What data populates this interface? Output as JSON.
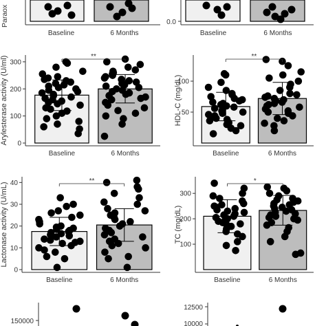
{
  "style": {
    "bar_fill_baseline": "#f0f0f0",
    "bar_fill_6m": "#bdbdbd",
    "point_color": "#000000",
    "axis_color": "#333333"
  },
  "chart_data": [
    {
      "id": "paraoxonase",
      "type": "bar",
      "ylabel": "Paraox",
      "categories": [
        "Baseline",
        "6 Months"
      ],
      "means": [
        null,
        null
      ],
      "ylim": [
        null,
        null
      ],
      "ticks": [],
      "tick_labels": [],
      "significance": "",
      "points": [
        [],
        []
      ]
    },
    {
      "id": "top-right",
      "type": "bar",
      "ylabel": "",
      "categories": [
        "Baseline",
        "6 Months"
      ],
      "means": [
        null,
        null
      ],
      "ylim": [
        0,
        null
      ],
      "ticks": [
        0
      ],
      "tick_labels": [
        "0.0"
      ],
      "significance": "",
      "points": [
        [],
        []
      ]
    },
    {
      "id": "arylesterase",
      "type": "bar",
      "ylabel": "Arylesterase activity (U/ml)",
      "categories": [
        "Baseline",
        "6 Months"
      ],
      "means": [
        177,
        200
      ],
      "errors": [
        [
          120,
          233
        ],
        [
          148,
          253
        ]
      ],
      "ylim": [
        0,
        320
      ],
      "ticks": [
        0,
        100,
        200,
        300
      ],
      "tick_labels": [
        "0",
        "100",
        "200",
        "300"
      ],
      "significance": "**",
      "points": [
        [
          35,
          52,
          60,
          70,
          80,
          90,
          100,
          110,
          118,
          125,
          130,
          140,
          145,
          150,
          155,
          160,
          165,
          170,
          175,
          180,
          185,
          190,
          195,
          200,
          205,
          210,
          215,
          220,
          225,
          230,
          235,
          240,
          245,
          255,
          265,
          280,
          295,
          300
        ],
        [
          25,
          70,
          90,
          100,
          110,
          120,
          130,
          140,
          150,
          160,
          165,
          170,
          175,
          180,
          185,
          190,
          195,
          200,
          205,
          210,
          215,
          220,
          225,
          230,
          235,
          240,
          245,
          250,
          255,
          260,
          265,
          270,
          280,
          290,
          300,
          310
        ]
      ]
    },
    {
      "id": "hdl",
      "type": "bar",
      "ylabel": "HDL-C (mg/dL)",
      "categories": [
        "Baseline",
        "6 Months"
      ],
      "means": [
        59,
        72
      ],
      "errors": [
        [
          36,
          82
        ],
        [
          46,
          98
        ]
      ],
      "ylim": [
        0,
        140
      ],
      "ticks": [
        50,
        100
      ],
      "tick_labels": [
        "50",
        "100"
      ],
      "significance": "**",
      "points": [
        [
          15,
          20,
          24,
          28,
          30,
          33,
          36,
          38,
          40,
          42,
          44,
          46,
          48,
          50,
          52,
          54,
          56,
          58,
          60,
          62,
          64,
          66,
          68,
          70,
          72,
          75,
          78,
          80,
          85,
          90,
          98,
          110,
          112
        ],
        [
          20,
          28,
          32,
          36,
          40,
          44,
          48,
          50,
          52,
          55,
          58,
          60,
          62,
          64,
          66,
          68,
          70,
          72,
          74,
          76,
          78,
          80,
          85,
          90,
          95,
          100,
          105,
          110,
          115,
          125,
          132,
          135
        ]
      ]
    },
    {
      "id": "lactonase",
      "type": "bar",
      "ylabel": "Lactonase activity (U/mL)",
      "categories": [
        "Baseline",
        "6 Months"
      ],
      "means": [
        17.5,
        20.5
      ],
      "errors": [
        [
          11,
          24
        ],
        [
          13,
          28
        ]
      ],
      "ylim": [
        0,
        42
      ],
      "ticks": [
        0,
        10,
        20,
        30,
        40
      ],
      "tick_labels": [
        "0",
        "10",
        "20",
        "30",
        "40"
      ],
      "significance": "**",
      "points": [
        [
          1,
          5,
          6,
          8,
          9,
          10,
          11,
          12,
          12.5,
          13,
          13.5,
          14,
          15,
          15.5,
          16,
          16.5,
          17,
          17.5,
          18,
          18.5,
          19,
          19.5,
          20,
          21,
          22,
          23,
          24,
          25,
          26,
          27,
          29,
          30,
          33
        ],
        [
          1,
          5,
          6,
          8,
          10,
          11,
          12,
          13,
          14,
          15,
          16,
          17,
          18,
          19,
          20,
          21,
          22,
          23,
          24,
          25,
          26,
          27,
          28,
          30,
          31,
          33,
          35,
          37,
          38,
          40,
          41
        ]
      ]
    },
    {
      "id": "tc",
      "type": "bar",
      "ylabel": "TC (mg/dL)",
      "categories": [
        "Baseline",
        "6 Months"
      ],
      "means": [
        210,
        233
      ],
      "errors": [
        [
          145,
          275
        ],
        [
          175,
          292
        ]
      ],
      "ylim": [
        0,
        360
      ],
      "ticks": [
        100,
        200,
        300
      ],
      "tick_labels": [
        "100",
        "200",
        "300"
      ],
      "significance": "*",
      "points": [
        [
          75,
          95,
          110,
          130,
          140,
          150,
          160,
          170,
          175,
          180,
          185,
          190,
          195,
          200,
          205,
          210,
          215,
          220,
          225,
          230,
          235,
          240,
          245,
          250,
          255,
          260,
          270,
          280,
          290,
          300,
          320,
          340
        ],
        [
          60,
          65,
          110,
          130,
          150,
          165,
          175,
          185,
          195,
          200,
          205,
          210,
          215,
          220,
          225,
          230,
          235,
          240,
          245,
          250,
          255,
          260,
          265,
          270,
          275,
          280,
          290,
          300,
          310,
          320,
          325
        ]
      ]
    },
    {
      "id": "bottom-left",
      "type": "bar",
      "ylabel": "",
      "categories": [
        "Baseline",
        "6 Months"
      ],
      "means": [
        null,
        null
      ],
      "ylim": [
        null,
        null
      ],
      "ticks": [
        150000
      ],
      "tick_labels": [
        "150000"
      ],
      "significance": "",
      "points": [
        [],
        []
      ]
    },
    {
      "id": "bottom-right",
      "type": "bar",
      "ylabel": "",
      "categories": [
        "Baseline",
        "6 Months"
      ],
      "means": [
        null,
        null
      ],
      "ylim": [
        null,
        null
      ],
      "ticks": [
        12500,
        10000
      ],
      "tick_labels": [
        "12500",
        "10000"
      ],
      "significance": "",
      "points": [
        [],
        []
      ]
    }
  ]
}
